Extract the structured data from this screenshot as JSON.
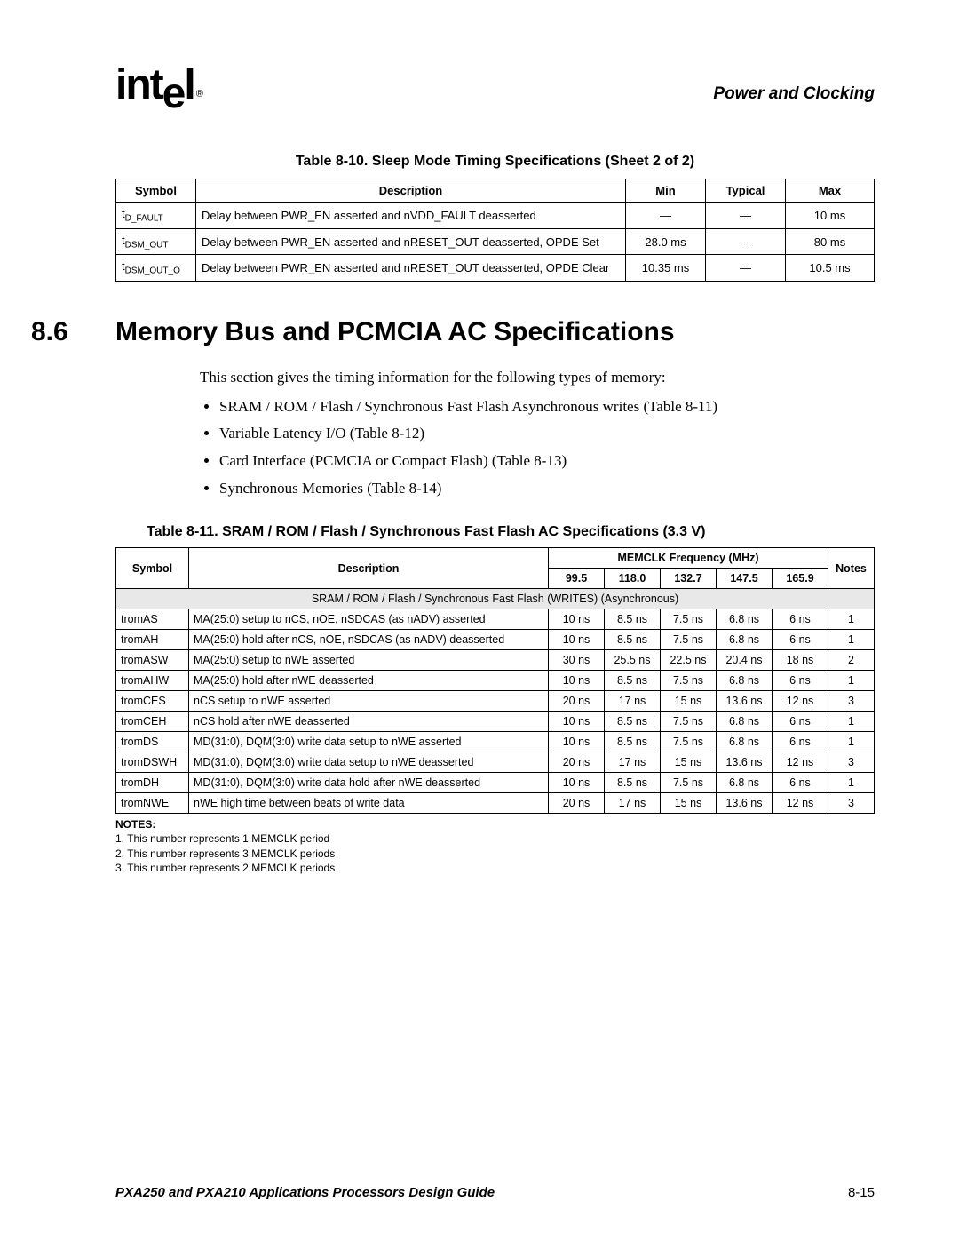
{
  "header": {
    "logo_text": "intel",
    "section_header": "Power and Clocking"
  },
  "table810": {
    "caption": "Table 8-10. Sleep Mode Timing Specifications (Sheet 2 of 2)",
    "columns": [
      "Symbol",
      "Description",
      "Min",
      "Typical",
      "Max"
    ],
    "rows": [
      {
        "sym_prefix": "t",
        "sym_sub": "D_FAULT",
        "desc": "Delay between PWR_EN asserted and nVDD_FAULT deasserted",
        "min": "—",
        "typ": "—",
        "max": "10 ms"
      },
      {
        "sym_prefix": "t",
        "sym_sub": "DSM_OUT",
        "desc": "Delay between PWR_EN asserted and nRESET_OUT deasserted, OPDE Set",
        "min": "28.0 ms",
        "typ": "—",
        "max": "80 ms"
      },
      {
        "sym_prefix": "t",
        "sym_sub": "DSM_OUT_O",
        "desc": "Delay between PWR_EN asserted and nRESET_OUT deasserted, OPDE Clear",
        "min": "10.35 ms",
        "typ": "—",
        "max": "10.5 ms"
      }
    ]
  },
  "section86": {
    "number": "8.6",
    "title": "Memory Bus and PCMCIA AC Specifications",
    "intro": "This section gives the timing information for the following types of memory:",
    "bullets": [
      "SRAM / ROM / Flash / Synchronous Fast Flash Asynchronous writes (Table 8-11)",
      "Variable Latency I/O (Table 8-12)",
      "Card Interface (PCMCIA or Compact Flash) (Table 8-13)",
      "Synchronous Memories (Table 8-14)"
    ]
  },
  "table811": {
    "caption": "Table 8-11. SRAM / ROM / Flash / Synchronous Fast Flash AC Specifications (3.3 V)",
    "head": {
      "symbol": "Symbol",
      "description": "Description",
      "freq_header": "MEMCLK Frequency (MHz)",
      "notes": "Notes",
      "freqs": [
        "99.5",
        "118.0",
        "132.7",
        "147.5",
        "165.9"
      ]
    },
    "section_label": "SRAM / ROM / Flash / Synchronous Fast Flash (WRITES) (Asynchronous)",
    "rows": [
      {
        "sym": "tromAS",
        "desc": "MA(25:0) setup to nCS, nOE, nSDCAS (as nADV) asserted",
        "v": [
          "10 ns",
          "8.5 ns",
          "7.5 ns",
          "6.8 ns",
          "6 ns"
        ],
        "n": "1"
      },
      {
        "sym": "tromAH",
        "desc": "MA(25:0) hold after nCS, nOE, nSDCAS (as nADV) deasserted",
        "v": [
          "10 ns",
          "8.5 ns",
          "7.5 ns",
          "6.8 ns",
          "6 ns"
        ],
        "n": "1"
      },
      {
        "sym": "tromASW",
        "desc": "MA(25:0) setup to nWE asserted",
        "v": [
          "30 ns",
          "25.5 ns",
          "22.5 ns",
          "20.4 ns",
          "18 ns"
        ],
        "n": "2"
      },
      {
        "sym": "tromAHW",
        "desc": "MA(25:0) hold after nWE deasserted",
        "v": [
          "10 ns",
          "8.5 ns",
          "7.5 ns",
          "6.8 ns",
          "6 ns"
        ],
        "n": "1"
      },
      {
        "sym": "tromCES",
        "desc": "nCS setup to nWE asserted",
        "v": [
          "20 ns",
          "17 ns",
          "15 ns",
          "13.6 ns",
          "12 ns"
        ],
        "n": "3"
      },
      {
        "sym": "tromCEH",
        "desc": "nCS hold after nWE deasserted",
        "v": [
          "10 ns",
          "8.5 ns",
          "7.5 ns",
          "6.8 ns",
          "6 ns"
        ],
        "n": "1"
      },
      {
        "sym": "tromDS",
        "desc": "MD(31:0), DQM(3:0) write data setup to nWE asserted",
        "v": [
          "10 ns",
          "8.5 ns",
          "7.5 ns",
          "6.8 ns",
          "6 ns"
        ],
        "n": "1"
      },
      {
        "sym": "tromDSWH",
        "desc": "MD(31:0), DQM(3:0) write data setup to nWE deasserted",
        "v": [
          "20 ns",
          "17 ns",
          "15 ns",
          "13.6 ns",
          "12 ns"
        ],
        "n": "3"
      },
      {
        "sym": "tromDH",
        "desc": "MD(31:0), DQM(3:0) write data hold after nWE deasserted",
        "v": [
          "10 ns",
          "8.5 ns",
          "7.5 ns",
          "6.8 ns",
          "6 ns"
        ],
        "n": "1"
      },
      {
        "sym": "tromNWE",
        "desc": "nWE high time between beats of write data",
        "v": [
          "20 ns",
          "17 ns",
          "15 ns",
          "13.6 ns",
          "12 ns"
        ],
        "n": "3"
      }
    ],
    "notes_label": "NOTES:",
    "notes": [
      "1. This number represents 1 MEMCLK period",
      "2. This number represents 3 MEMCLK periods",
      "3. This number represents 2 MEMCLK periods"
    ]
  },
  "footer": {
    "title": "PXA250 and PXA210 Applications Processors Design Guide",
    "page": "8-15"
  }
}
